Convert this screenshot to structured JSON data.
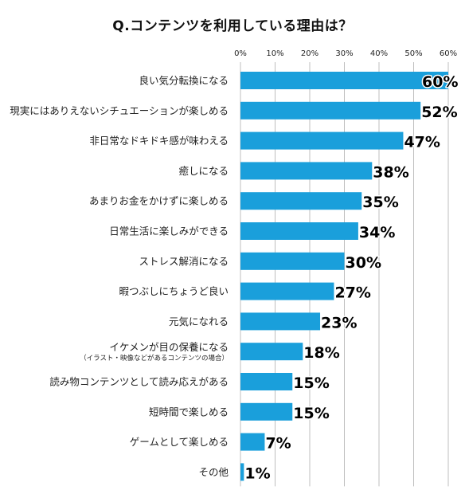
{
  "title": "Q.コンテンツを利用している理由は？",
  "colors": {
    "bar": "#1a9fdb",
    "grid": "#bfbfbf",
    "text": "#222222"
  },
  "chart_data": {
    "type": "bar",
    "orientation": "horizontal",
    "xlim": [
      0,
      60
    ],
    "ticks": [
      "0%",
      "10%",
      "20%",
      "30%",
      "40%",
      "50%",
      "60%"
    ],
    "tick_values": [
      0,
      10,
      20,
      30,
      40,
      50,
      60
    ],
    "axis_position": "top",
    "grid": true,
    "categories": [
      {
        "label": "良い気分転換になる",
        "sublabel": ""
      },
      {
        "label": "現実にはありえないシチュエーションが楽しめる",
        "sublabel": ""
      },
      {
        "label": "非日常なドキドキ感が味わえる",
        "sublabel": ""
      },
      {
        "label": "癒しになる",
        "sublabel": ""
      },
      {
        "label": "あまりお金をかけずに楽しめる",
        "sublabel": ""
      },
      {
        "label": "日常生活に楽しみができる",
        "sublabel": ""
      },
      {
        "label": "ストレス解消になる",
        "sublabel": ""
      },
      {
        "label": "暇つぶしにちょうど良い",
        "sublabel": ""
      },
      {
        "label": "元気になれる",
        "sublabel": ""
      },
      {
        "label": "イケメンが目の保養になる",
        "sublabel": "（イラスト・映像などがあるコンテンツの場合）"
      },
      {
        "label": "読み物コンテンツとして読み応えがある",
        "sublabel": ""
      },
      {
        "label": "短時間で楽しめる",
        "sublabel": ""
      },
      {
        "label": "ゲームとして楽しめる",
        "sublabel": ""
      },
      {
        "label": "その他",
        "sublabel": ""
      }
    ],
    "values": [
      60,
      52,
      47,
      38,
      35,
      34,
      30,
      27,
      23,
      18,
      15,
      15,
      7,
      1
    ],
    "value_labels": [
      "60%",
      "52%",
      "47%",
      "38%",
      "35%",
      "34%",
      "30%",
      "27%",
      "23%",
      "18%",
      "15%",
      "15%",
      "7%",
      "1%"
    ]
  }
}
